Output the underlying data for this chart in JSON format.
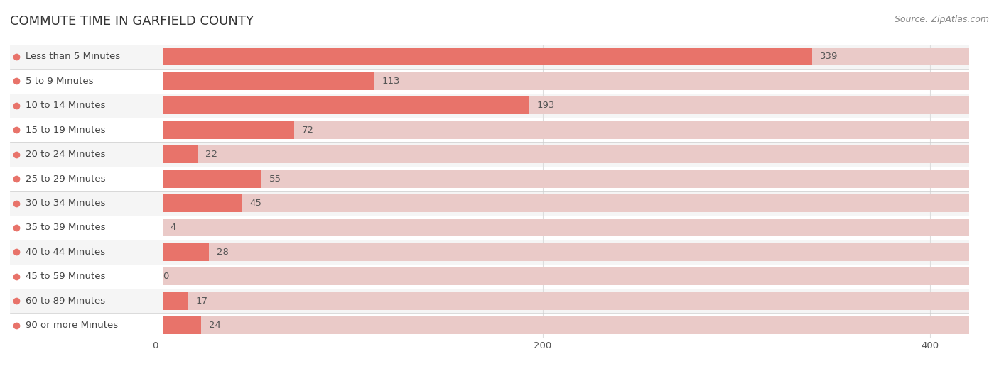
{
  "title": "COMMUTE TIME IN GARFIELD COUNTY",
  "source": "Source: ZipAtlas.com",
  "categories": [
    "Less than 5 Minutes",
    "5 to 9 Minutes",
    "10 to 14 Minutes",
    "15 to 19 Minutes",
    "20 to 24 Minutes",
    "25 to 29 Minutes",
    "30 to 34 Minutes",
    "35 to 39 Minutes",
    "40 to 44 Minutes",
    "45 to 59 Minutes",
    "60 to 89 Minutes",
    "90 or more Minutes"
  ],
  "values": [
    339,
    113,
    193,
    72,
    22,
    55,
    45,
    4,
    28,
    0,
    17,
    24
  ],
  "bar_color": "#E8736A",
  "bar_bg_color": "#EACAC8",
  "background_color": "#FFFFFF",
  "row_colors": [
    "#F5F5F5",
    "#FFFFFF"
  ],
  "title_fontsize": 13,
  "label_fontsize": 9.5,
  "value_fontsize": 9.5,
  "source_fontsize": 9,
  "xlim_max": 420,
  "xticks": [
    0,
    200,
    400
  ],
  "title_color": "#333333",
  "label_color": "#444444",
  "value_color": "#555555",
  "source_color": "#888888",
  "grid_color": "#DDDDDD",
  "sep_line_color": "#CCCCCC"
}
